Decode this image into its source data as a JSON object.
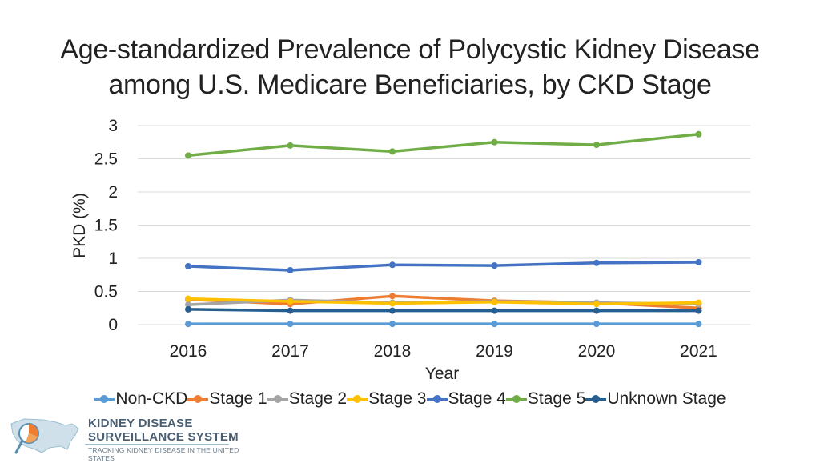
{
  "chart_data": {
    "type": "line",
    "title": "Age-standardized Prevalence of Polycystic Kidney Disease among U.S. Medicare Beneficiaries, by CKD Stage",
    "title_lines": [
      "Age-standardized Prevalence of Polycystic Kidney Disease",
      "among U.S. Medicare Beneficiaries, by CKD Stage"
    ],
    "xlabel": "Year",
    "ylabel": "PKD (%)",
    "x": [
      "2016",
      "2017",
      "2018",
      "2019",
      "2020",
      "2021"
    ],
    "ylim": [
      0,
      3
    ],
    "yticks": [
      0,
      0.5,
      1,
      1.5,
      2,
      2.5,
      3
    ],
    "ytick_labels": [
      "0",
      "0.5",
      "1",
      "1.5",
      "2",
      "2.5",
      "3"
    ],
    "grid": true,
    "legend_position": "bottom",
    "series": [
      {
        "name": "Non-CKD",
        "color": "#5B9BD5",
        "values": [
          0.01,
          0.01,
          0.01,
          0.01,
          0.01,
          0.01
        ]
      },
      {
        "name": "Stage 1",
        "color": "#ED7D31",
        "values": [
          0.38,
          0.31,
          0.43,
          0.36,
          0.33,
          0.25
        ]
      },
      {
        "name": "Stage 2",
        "color": "#A5A5A5",
        "values": [
          0.3,
          0.37,
          0.33,
          0.35,
          0.33,
          0.31
        ]
      },
      {
        "name": "Stage 3",
        "color": "#FFC000",
        "values": [
          0.39,
          0.35,
          0.32,
          0.34,
          0.31,
          0.33
        ]
      },
      {
        "name": "Stage 4",
        "color": "#4472C4",
        "values": [
          0.88,
          0.82,
          0.9,
          0.89,
          0.93,
          0.94
        ]
      },
      {
        "name": "Stage 5",
        "color": "#70AD47",
        "values": [
          2.55,
          2.7,
          2.61,
          2.75,
          2.71,
          2.87
        ]
      },
      {
        "name": "Unknown Stage",
        "color": "#255E91",
        "values": [
          0.23,
          0.21,
          0.21,
          0.21,
          0.21,
          0.21
        ]
      }
    ]
  },
  "logo": {
    "line1": "KIDNEY DISEASE",
    "line2": "SURVEILLANCE SYSTEM",
    "line3": "TRACKING KIDNEY DISEASE IN THE UNITED STATES"
  }
}
